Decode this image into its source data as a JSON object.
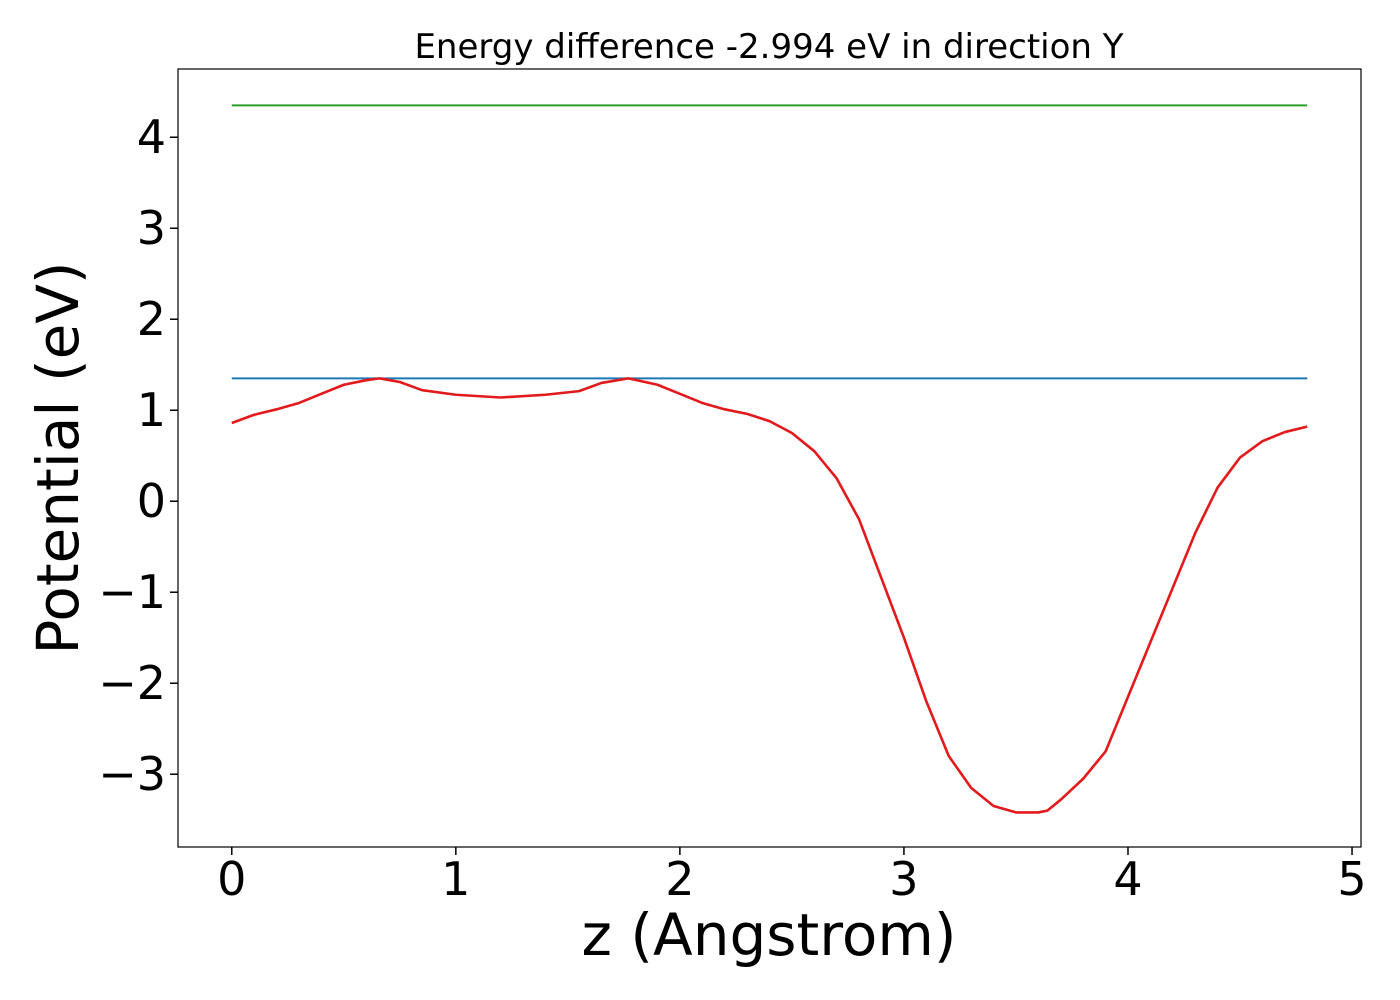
{
  "chart_data": {
    "type": "line",
    "title": "Energy difference -2.994 eV in direction Y",
    "xlabel": "z (Angstrom)",
    "ylabel": "Potential (eV)",
    "xlim": [
      -0.24,
      5.04
    ],
    "ylim": [
      -3.8,
      4.75
    ],
    "xticks": [
      0,
      1,
      2,
      3,
      4,
      5
    ],
    "xtick_labels": [
      "0",
      "1",
      "2",
      "3",
      "4",
      "5"
    ],
    "yticks": [
      -3,
      -2,
      -1,
      0,
      1,
      2,
      3,
      4
    ],
    "ytick_labels": [
      "−3",
      "−2",
      "−1",
      "0",
      "1",
      "2",
      "3",
      "4"
    ],
    "grid": false,
    "legend": "none",
    "series": [
      {
        "color": "#2ca02c",
        "x": [
          0,
          4.8
        ],
        "y": [
          4.35,
          4.35
        ]
      },
      {
        "color": "#1f77b4",
        "x": [
          0,
          4.8
        ],
        "y": [
          1.35,
          1.35
        ]
      },
      {
        "color": "#e31a1c",
        "x": [
          0,
          0.1,
          0.2,
          0.3,
          0.4,
          0.5,
          0.6,
          0.66,
          0.75,
          0.85,
          1.0,
          1.2,
          1.4,
          1.55,
          1.65,
          1.77,
          1.9,
          2.0,
          2.1,
          2.2,
          2.3,
          2.4,
          2.5,
          2.6,
          2.7,
          2.8,
          2.9,
          3.0,
          3.1,
          3.2,
          3.3,
          3.4,
          3.5,
          3.6,
          3.64,
          3.7,
          3.8,
          3.9,
          4.0,
          4.1,
          4.2,
          4.3,
          4.4,
          4.5,
          4.6,
          4.7,
          4.8
        ],
        "y": [
          0.86,
          0.95,
          1.01,
          1.08,
          1.18,
          1.28,
          1.33,
          1.35,
          1.31,
          1.22,
          1.17,
          1.14,
          1.17,
          1.21,
          1.3,
          1.35,
          1.28,
          1.18,
          1.08,
          1.01,
          0.96,
          0.88,
          0.75,
          0.55,
          0.25,
          -0.2,
          -0.85,
          -1.5,
          -2.2,
          -2.8,
          -3.15,
          -3.35,
          -3.42,
          -3.42,
          -3.4,
          -3.28,
          -3.05,
          -2.75,
          -2.15,
          -1.55,
          -0.95,
          -0.35,
          0.15,
          0.48,
          0.66,
          0.76,
          0.82
        ]
      }
    ]
  }
}
